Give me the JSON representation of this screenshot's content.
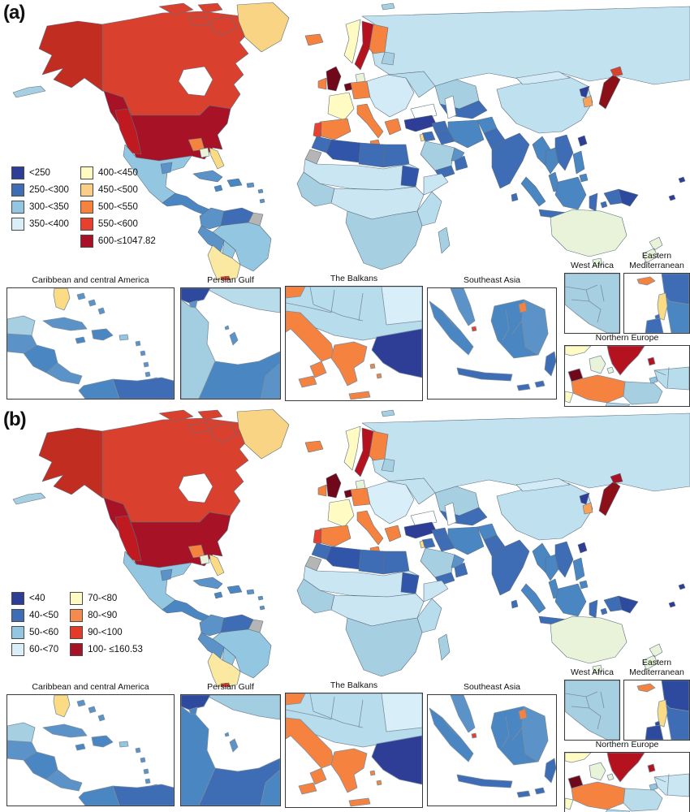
{
  "inset_titles": {
    "caribbean": "Caribbean and central America",
    "persianGulf": "Persian Gulf",
    "balkans": "The Balkans",
    "seasia": "Southeast Asia",
    "westafrica": "West Africa",
    "eastmed": "Eastern Mediterranean",
    "northeurope": "Northern Europe"
  },
  "panels": [
    {
      "label": "(a)",
      "legend": {
        "split": 4,
        "items": [
          {
            "label": "<250",
            "color": "#2e3e96"
          },
          {
            "label": "250-<300",
            "color": "#3e6db5"
          },
          {
            "label": "300-<350",
            "color": "#93c6e0"
          },
          {
            "label": "350-<400",
            "color": "#daeef7"
          },
          {
            "label": "400-<450",
            "color": "#fffbc3"
          },
          {
            "label": "450-<500",
            "color": "#fbcd86"
          },
          {
            "label": "500-<550",
            "color": "#f5823f"
          },
          {
            "label": "550-<600",
            "color": "#e8402e"
          },
          {
            "label": "600-≤1047.82",
            "color": "#a81227"
          }
        ]
      },
      "world_colors": {
        "russia": "#c3e2f0",
        "kazakh": "#a6cfe2",
        "centralasia": "#3e6db5",
        "china": "#bfe0ee",
        "mongolia": "#d2ebf6",
        "canada": "#d9402d",
        "alaska": "#c22d22",
        "aleutians": "#a6cfe2",
        "arctic": "#d9402d",
        "hudsonbay": "#ffffff",
        "greenland": "#f9d484",
        "us": "#a81227",
        "usPatchW": "#c01a20",
        "usPatchS": "#f5823f",
        "usPatchPale": "#e9f3d9",
        "florida": "#fbdc84",
        "mexico": "#93c6e0",
        "mexicoPatch": "#5b93c8",
        "centralam": "#4a86c2",
        "cuba": "#5b93c8",
        "hispaniola": "#4a86c2",
        "jamaica": "#4a86c2",
        "antilles": "#5b93c8",
        "colombia": "#5b93c8",
        "venezuela": "#3e6db5",
        "guyana": "#b5b5b5",
        "brazil": "#93c6e0",
        "peru": "#5b93c8",
        "bolivia": "#93c6e0",
        "chilearg": "#fbe9a2",
        "tierra": "#d9402d",
        "iceland": "#f5823f",
        "svalbard": "#a6cfe2",
        "norway": "#fffbc3",
        "sweden": "#b5121f",
        "finland": "#f5823f",
        "baltics": "#a6cfe2",
        "uk": "#70081a",
        "ireland": "#f5823f",
        "denmark": "#e9f3d9",
        "benelux": "#70081a",
        "germany": "#f5823f",
        "france": "#fffbc3",
        "spain": "#f5823f",
        "portugal": "#e8402e",
        "italy": "#f5823f",
        "sicily": "#f5823f",
        "easteur": "#d2ebf6",
        "ukraine": "#b7dcec",
        "greece": "#f5823f",
        "turkey": "#2e3e96",
        "syria": "#3e6db5",
        "iraq": "#3e6db5",
        "iran": "#4a86c2",
        "afghan": "#4a86c2",
        "pakistan": "#3e6db5",
        "jordan": "#3e6db5",
        "israel": "#fbdc84",
        "saudi": "#a6cfe2",
        "gulfstates": "#5b93c8",
        "yemen": "#3e6db5",
        "oman": "#3e6db5",
        "morocco": "#3e6db5",
        "algeria": "#3156a9",
        "libya": "#3e6db5",
        "egypt": "#3e6db5",
        "westsahara": "#b5b5b5",
        "sahel": "#c9e6f2",
        "sudan": "#3156a9",
        "westbulge": "#a6cfe2",
        "centralafrica": "#c9e6f2",
        "horn": "#c9e6f2",
        "eastafrica": "#b7dcec",
        "southernafrica": "#a6cfe2",
        "madagascar": "#a6cfe2",
        "india": "#3e6db5",
        "srilanka": "#3e6db5",
        "myanmar": "#4a86c2",
        "thailand": "#4a86c2",
        "indochina": "#3e6db5",
        "malaypen": "#4a86c2",
        "japan": "#8c1018",
        "hokkaido": "#d9402d",
        "nkorea": "#2e3e96",
        "skorea": "#f8a159",
        "taiwan": "#2e3e96",
        "philippines": "#4a86c2",
        "sumatra": "#4a86c2",
        "java": "#3e6db5",
        "borneo": "#4a86c2",
        "sulawesi": "#3e6db5",
        "lessersunda": "#3e6db5",
        "moluccas": "#3e6db5",
        "westpapua": "#3e6db5",
        "png": "#2e4a9e",
        "australia": "#e9f3d9",
        "tasmania": "#e9f3d9",
        "nz": "#e9f3d9",
        "pacific": "#2e3e96",
        "caspian": "#ffffff",
        "blacksea": "#ffffff"
      },
      "inset_colors": {
        "caribbean": {
          "florida": "#fbdc84",
          "bahamas": "#5b93c8",
          "yucatan": "#a6cfe2",
          "guatemala": "#5b93c8",
          "honduras": "#4a86c2",
          "costapanama": "#5b93c8",
          "cuba": "#5b93c8",
          "jamaica": "#4a86c2",
          "hispaniola": "#4a86c2",
          "pr": "#93c6e0",
          "antilles": "#5b93c8",
          "trinidad": "#4a86c2",
          "colombia": "#4a86c2",
          "venezuela": "#3e6db5"
        },
        "persianGulf": {
          "iran": "#b9dcea",
          "iraq": "#2e4a9e",
          "kuwait": "#5b93c8",
          "saudi": "#a3cde0",
          "qatar": "#5b93c8",
          "bahrain": "#5b93c8",
          "uae": "#4a86c2",
          "oman": "#5b93c8"
        },
        "balkans": {
          "top": "#b7dcec",
          "topright": "#d8eef8",
          "slovenia": "#f5823f",
          "italy": "#f5823f",
          "calabria": "#f5823f",
          "sicilyI": "#f5823f",
          "greece": "#f5823f",
          "crete": "#f5823f",
          "aegean": "#f5823f",
          "turkeyI": "#2e3e96"
        },
        "seasia": {
          "malay": "#5b93c8",
          "singapore": "#e8402e",
          "sumatra": "#4a86c2",
          "java": "#3e6db5",
          "borneo": "#4a86c2",
          "borneoE": "#5b93c8",
          "brunei": "#f5823f",
          "sulawesi": "#3e6db5",
          "lesser": "#3e6db5"
        },
        "westafrica": {
          "land": "#a6cfe2"
        },
        "eastmed": {
          "rightTop": "#3e6db5",
          "rightBottom": "#4a86c2",
          "israelI": "#fbdc84",
          "gaza": "#3e6db5",
          "cyprusI": "#f5823f",
          "sinai": "#3e6db5"
        },
        "northeurope": {
          "norwayN": "#fffbc3",
          "swedenN": "#b5121f",
          "gotland": "#b5121f",
          "denmarkN": "#e9f3d9",
          "nlN": "#70081a",
          "germanyN": "#f5823f",
          "belgiumN": "#fffbc3",
          "polandN": "#a6cfe2",
          "balticN": "#b7dcec",
          "kaliningrad": "#93c6e0",
          "czechN": "#b7dcec"
        }
      }
    },
    {
      "label": "(b)",
      "legend": {
        "split": 4,
        "items": [
          {
            "label": "<40",
            "color": "#2e3e96"
          },
          {
            "label": "40-<50",
            "color": "#3e6db5"
          },
          {
            "label": "50-<60",
            "color": "#93c6e0"
          },
          {
            "label": "60-<70",
            "color": "#daeef7"
          },
          {
            "label": "70-<80",
            "color": "#fffbc3"
          },
          {
            "label": "80-<90",
            "color": "#f68a4d"
          },
          {
            "label": "90-<100",
            "color": "#e33a2a"
          },
          {
            "label": "100- ≤160.53",
            "color": "#a81227"
          }
        ]
      },
      "world_colors": {
        "russia": "#c3e2f0",
        "kazakh": "#a6cfe2",
        "centralasia": "#3e6db5",
        "china": "#bfe0ee",
        "mongolia": "#d2ebf6",
        "canada": "#d9402d",
        "alaska": "#c22d22",
        "aleutians": "#a6cfe2",
        "arctic": "#d9402d",
        "hudsonbay": "#ffffff",
        "greenland": "#f9d484",
        "us": "#a81227",
        "usPatchW": "#c01a20",
        "usPatchS": "#f5823f",
        "usPatchPale": "#e9f3d9",
        "florida": "#fbdc84",
        "mexico": "#93c6e0",
        "mexicoPatch": "#5b93c8",
        "centralam": "#4a86c2",
        "cuba": "#5b93c8",
        "hispaniola": "#4a86c2",
        "jamaica": "#4a86c2",
        "antilles": "#5b93c8",
        "colombia": "#5b93c8",
        "venezuela": "#3e6db5",
        "guyana": "#b5b5b5",
        "brazil": "#93c6e0",
        "peru": "#5b93c8",
        "bolivia": "#93c6e0",
        "chilearg": "#fbe9a2",
        "tierra": "#d9402d",
        "iceland": "#f5823f",
        "svalbard": "#a6cfe2",
        "norway": "#fffbc3",
        "sweden": "#b5121f",
        "finland": "#f5823f",
        "baltics": "#a6cfe2",
        "uk": "#70081a",
        "ireland": "#f5823f",
        "denmark": "#e9f3d9",
        "benelux": "#70081a",
        "germany": "#f5823f",
        "france": "#fffbc3",
        "spain": "#f5823f",
        "portugal": "#e8402e",
        "italy": "#f5823f",
        "sicily": "#f5823f",
        "easteur": "#d8eef8",
        "ukraine": "#c3e2f0",
        "greece": "#f5823f",
        "turkey": "#2e3e96",
        "syria": "#3e6db5",
        "iraq": "#3e6db5",
        "iran": "#4a86c2",
        "afghan": "#4a86c2",
        "pakistan": "#3e6db5",
        "jordan": "#3e6db5",
        "israel": "#fbdc84",
        "saudi": "#a6cfe2",
        "gulfstates": "#5b93c8",
        "yemen": "#3e6db5",
        "oman": "#3e6db5",
        "morocco": "#3e6db5",
        "algeria": "#3156a9",
        "libya": "#3e6db5",
        "egypt": "#3e6db5",
        "westsahara": "#b5b5b5",
        "sahel": "#c9e6f2",
        "sudan": "#3156a9",
        "westbulge": "#a6cfe2",
        "centralafrica": "#c9e6f2",
        "horn": "#c9e6f2",
        "eastafrica": "#b7dcec",
        "southernafrica": "#a6cfe2",
        "madagascar": "#a6cfe2",
        "india": "#3e6db5",
        "srilanka": "#3e6db5",
        "myanmar": "#4a86c2",
        "thailand": "#4a86c2",
        "indochina": "#3e6db5",
        "malaypen": "#4a86c2",
        "japan": "#8c1018",
        "hokkaido": "#a81227",
        "nkorea": "#2e3e96",
        "skorea": "#f8a159",
        "taiwan": "#2e3e96",
        "philippines": "#4a86c2",
        "sumatra": "#4a86c2",
        "java": "#3e6db5",
        "borneo": "#4a86c2",
        "sulawesi": "#3e6db5",
        "lessersunda": "#3e6db5",
        "moluccas": "#3e6db5",
        "westpapua": "#3e6db5",
        "png": "#2e4a9e",
        "australia": "#e9f3d9",
        "tasmania": "#e9f3d9",
        "nz": "#e9f3d9",
        "pacific": "#2e3e96",
        "caspian": "#ffffff",
        "blacksea": "#ffffff"
      },
      "inset_colors": {
        "caribbean": {
          "florida": "#fbdc84",
          "bahamas": "#5b93c8",
          "yucatan": "#a6cfe2",
          "guatemala": "#5b93c8",
          "honduras": "#4a86c2",
          "costapanama": "#5b93c8",
          "cuba": "#5b93c8",
          "jamaica": "#4a86c2",
          "hispaniola": "#4a86c2",
          "pr": "#93c6e0",
          "antilles": "#5b93c8",
          "trinidad": "#4a86c2",
          "colombia": "#4a86c2",
          "venezuela": "#3e6db5"
        },
        "persianGulf": {
          "iran": "#a3cde0",
          "iraq": "#2e4a9e",
          "kuwait": "#4a86c2",
          "saudi": "#4a86c2",
          "qatar": "#5b93c8",
          "bahrain": "#5b93c8",
          "uae": "#3e6db5",
          "oman": "#4a86c2"
        },
        "balkans": {
          "top": "#b7dcec",
          "topright": "#d8eef8",
          "slovenia": "#f5823f",
          "italy": "#f5823f",
          "calabria": "#f5823f",
          "sicilyI": "#f5823f",
          "greece": "#f5823f",
          "crete": "#f5823f",
          "aegean": "#f5823f",
          "turkeyI": "#2e3e96"
        },
        "seasia": {
          "malay": "#5b93c8",
          "singapore": "#e8402e",
          "sumatra": "#4a86c2",
          "java": "#3e6db5",
          "borneo": "#4a86c2",
          "borneoE": "#5b93c8",
          "brunei": "#f5823f",
          "sulawesi": "#3e6db5",
          "lesser": "#3e6db5"
        },
        "westafrica": {
          "land": "#a6cfe2"
        },
        "eastmed": {
          "rightTop": "#2e4a9e",
          "rightBottom": "#3e6db5",
          "israelI": "#fbdc84",
          "gaza": "#2e4a9e",
          "cyprusI": "#f5823f",
          "sinai": "#2e4a9e"
        },
        "northeurope": {
          "norwayN": "#fffbc3",
          "swedenN": "#b5121f",
          "gotland": "#b5121f",
          "denmarkN": "#e9f3d9",
          "nlN": "#70081a",
          "germanyN": "#f5823f",
          "belgiumN": "#fffbc3",
          "polandN": "#b9dcea",
          "balticN": "#c9e6f2",
          "kaliningrad": "#93c6e0",
          "czechN": "#b7dcec"
        }
      }
    }
  ]
}
